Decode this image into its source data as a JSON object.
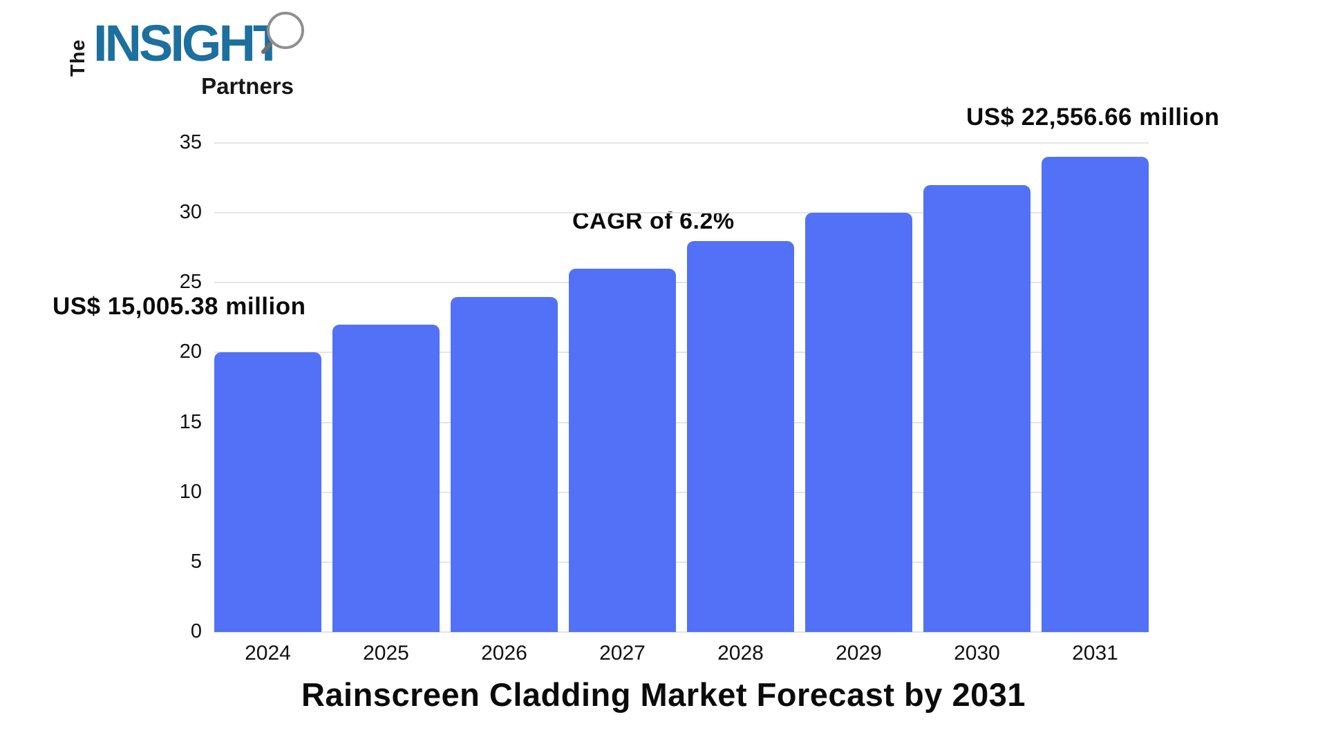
{
  "logo": {
    "the": "The",
    "insight": "INSIGHT",
    "partners": "Partners",
    "insight_color": "#1d6f9e",
    "text_color": "#161616",
    "magnifier_color": "#8f8f8f"
  },
  "chart_data": {
    "type": "bar",
    "title": "Rainscreen Cladding Market Forecast by 2031",
    "categories": [
      "2024",
      "2025",
      "2026",
      "2027",
      "2028",
      "2029",
      "2030",
      "2031"
    ],
    "values": [
      20,
      22,
      24,
      26,
      28,
      30,
      32,
      34
    ],
    "xlabel": "",
    "ylabel": "",
    "ylim": [
      0,
      35
    ],
    "yticks": [
      0,
      5,
      10,
      15,
      20,
      25,
      30,
      35
    ],
    "grid": true,
    "legend": false,
    "bar_color": "#5271f7",
    "gridline_color": "#e4e4e4",
    "annotations": [
      {
        "text": "US$ 15,005.38 million"
      },
      {
        "text": "CAGR of 6.2%"
      },
      {
        "text": "US$ 22,556.66 million"
      }
    ]
  }
}
